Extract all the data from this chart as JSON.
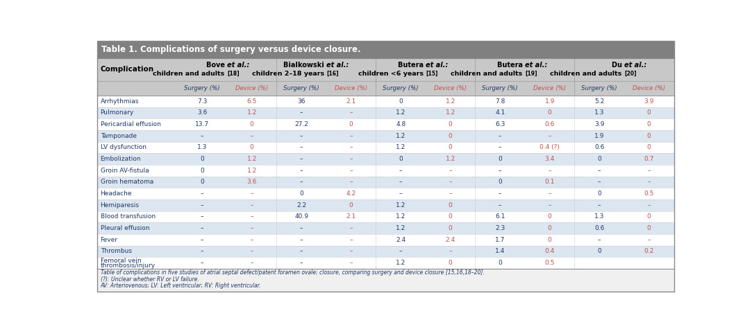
{
  "title": "Table 1. Complications of surgery versus device closure.",
  "title_bg": "#808080",
  "title_color": "#ffffff",
  "header_bg": "#c8c8c8",
  "row_bg_odd": "#ffffff",
  "row_bg_even": "#dce6f0",
  "surgery_color": "#1f3864",
  "device_color": "#c0504d",
  "complication_color": "#1f3864",
  "footnote_color": "#1f3864",
  "col_groups": [
    {
      "line1": "Bove ",
      "italic1": "et al.",
      "line1b": ":",
      "line2": "children and adults",
      "ref": "[18]"
    },
    {
      "line1": "Bialkowski ",
      "italic1": "et al.",
      "line1b": ":",
      "line2": "children 2–18 years",
      "ref": "[16]"
    },
    {
      "line1": "Butera ",
      "italic1": "et al.",
      "line1b": ":",
      "line2": "children <6 years",
      "ref": "[15]"
    },
    {
      "line1": "Butera ",
      "italic1": "et al.",
      "line1b": ":",
      "line2": "children and adults",
      "ref": "[19]"
    },
    {
      "line1": "Du ",
      "italic1": "et al.",
      "line1b": ":",
      "line2": "children and adults",
      "ref": "[20]"
    }
  ],
  "col_headers": [
    "Surgery (%)",
    "Device (%)",
    "Surgery (%)",
    "Device (%)",
    "Surgery (%)",
    "Device (%)",
    "Surgery (%)",
    "Device (%)",
    "Surgery (%)",
    "Device (%)"
  ],
  "rows": [
    [
      "Arrhythmias",
      "7.3",
      "6.5",
      "36",
      "2.1",
      "0",
      "1.2",
      "7.8",
      "1.9",
      "5.2",
      "3.9"
    ],
    [
      "Pulmonary",
      "3.6",
      "1.2",
      "–",
      "–",
      "1.2",
      "1.2",
      "4.1",
      "0",
      "1.3",
      "0"
    ],
    [
      "Pericardial effusion",
      "13.7",
      "0",
      "27.2",
      "0",
      "4.8",
      "0",
      "6.3",
      "0.6",
      "3.9",
      "0"
    ],
    [
      "Tamponade",
      "–",
      "–",
      "–",
      "–",
      "1.2",
      "0",
      "–",
      "–",
      "1.9",
      "0"
    ],
    [
      "LV dysfunction",
      "1.3",
      "0",
      "–",
      "–",
      "1.2",
      "0",
      "–",
      "0.4 (?)",
      "0.6",
      "0"
    ],
    [
      "Embolization",
      "0",
      "1.2",
      "–",
      "–",
      "0",
      "1.2",
      "0",
      "3.4",
      "0",
      "0.7"
    ],
    [
      "Groin AV-fistula",
      "0",
      "1.2",
      "–",
      "–",
      "–",
      "–",
      "–",
      "–",
      "–",
      "–"
    ],
    [
      "Groin hematoma",
      "0",
      "3.6",
      "–",
      "–",
      "–",
      "–",
      "0",
      "0.1",
      "–",
      "–"
    ],
    [
      "Headache",
      "–",
      "–",
      "0",
      "4.2",
      "–",
      "–",
      "–",
      "–",
      "0",
      "0.5"
    ],
    [
      "Hemiparesis",
      "–",
      "–",
      "2.2",
      "0",
      "1.2",
      "0",
      "–",
      "–",
      "–",
      "–"
    ],
    [
      "Blood transfusion",
      "–",
      "–",
      "40.9",
      "2.1",
      "1.2",
      "0",
      "6.1",
      "0",
      "1.3",
      "0"
    ],
    [
      "Pleural effusion",
      "–",
      "–",
      "–",
      "–",
      "1.2",
      "0",
      "2.3",
      "0",
      "0.6",
      "0"
    ],
    [
      "Fever",
      "–",
      "–",
      "–",
      "–",
      "2.4",
      "2.4",
      "1.7",
      "0",
      "–",
      "–"
    ],
    [
      "Thrombus",
      "–",
      "–",
      "–",
      "–",
      "–",
      "–",
      "1.4",
      "0.4",
      "0",
      "0.2"
    ],
    [
      "Femoral vein\nthrombosis/injury",
      "–",
      "–",
      "–",
      "–",
      "1.2",
      "0",
      "0",
      "0.5",
      "",
      ""
    ]
  ],
  "footnotes": [
    "Table of complications in five studies of atrial septal defect/patent foramen ovale; closure, comparing surgery and device closure [15,16,18–20].",
    "(?): Unclear whether RV or LV failure.",
    "AV: Arteriovenous; LV: Left ventricular; RV: Right ventricular."
  ]
}
